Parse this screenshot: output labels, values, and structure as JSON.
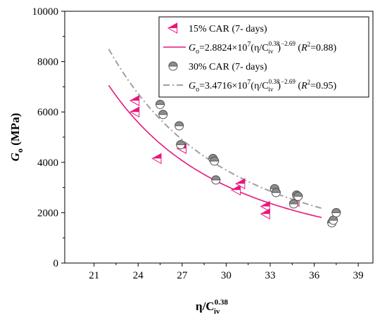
{
  "chart_data": {
    "type": "scatter",
    "x_axis": {
      "label": "η/C",
      "label_superscript": "0.38",
      "label_subscript": "iv",
      "range": [
        19,
        40
      ],
      "ticks": [
        21,
        24,
        27,
        30,
        33,
        36,
        39
      ]
    },
    "y_axis": {
      "label_main": "G",
      "label_subscript": "o",
      "label_unit": " (MPa)",
      "range": [
        0,
        10000
      ],
      "ticks": [
        0,
        2000,
        4000,
        6000,
        8000,
        10000
      ]
    },
    "grid": false,
    "legend": {
      "placement": "top-right",
      "entries": [
        {
          "text": "15% CAR (7- days)",
          "kind": "marker",
          "series": "car15"
        },
        {
          "kind": "fit",
          "series": "car15",
          "coef": "2.8824",
          "exp10": "7",
          "exp": "−2.69",
          "r2": "0.88"
        },
        {
          "text": "30% CAR (7- days)",
          "kind": "marker",
          "series": "car30"
        },
        {
          "kind": "fit",
          "series": "car30",
          "coef": "3.4716",
          "exp10": "7",
          "exp": "−2.69",
          "r2": "0.95"
        }
      ]
    },
    "series": [
      {
        "id": "car15",
        "marker": "left-triangle-half",
        "color": "#e8177d",
        "points": [
          [
            23.8,
            6450
          ],
          [
            23.8,
            6000
          ],
          [
            25.3,
            4150
          ],
          [
            27.0,
            4550
          ],
          [
            30.7,
            2900
          ],
          [
            31.0,
            3150
          ],
          [
            32.7,
            2250
          ],
          [
            32.7,
            1950
          ],
          [
            34.7,
            2450
          ]
        ]
      },
      {
        "id": "car30",
        "marker": "circle-half",
        "color": "#8c8c8c",
        "points": [
          [
            25.5,
            6300
          ],
          [
            25.7,
            5900
          ],
          [
            26.8,
            5450
          ],
          [
            26.9,
            4700
          ],
          [
            29.1,
            4150
          ],
          [
            29.2,
            4050
          ],
          [
            29.3,
            3300
          ],
          [
            33.3,
            2950
          ],
          [
            33.4,
            2800
          ],
          [
            34.6,
            2350
          ],
          [
            34.8,
            2700
          ],
          [
            34.9,
            2650
          ],
          [
            37.2,
            1600
          ],
          [
            37.3,
            1700
          ],
          [
            37.5,
            2000
          ]
        ]
      }
    ],
    "fits": [
      {
        "series": "car15",
        "coef": 28824000,
        "exponent": -2.69,
        "x_range": [
          22,
          36.5
        ],
        "color": "#e8177d",
        "dash": "solid"
      },
      {
        "series": "car30",
        "coef": 34716000,
        "exponent": -2.69,
        "x_range": [
          22,
          36.5
        ],
        "color": "#a0a0a0",
        "dash": "dash-dot"
      }
    ]
  }
}
